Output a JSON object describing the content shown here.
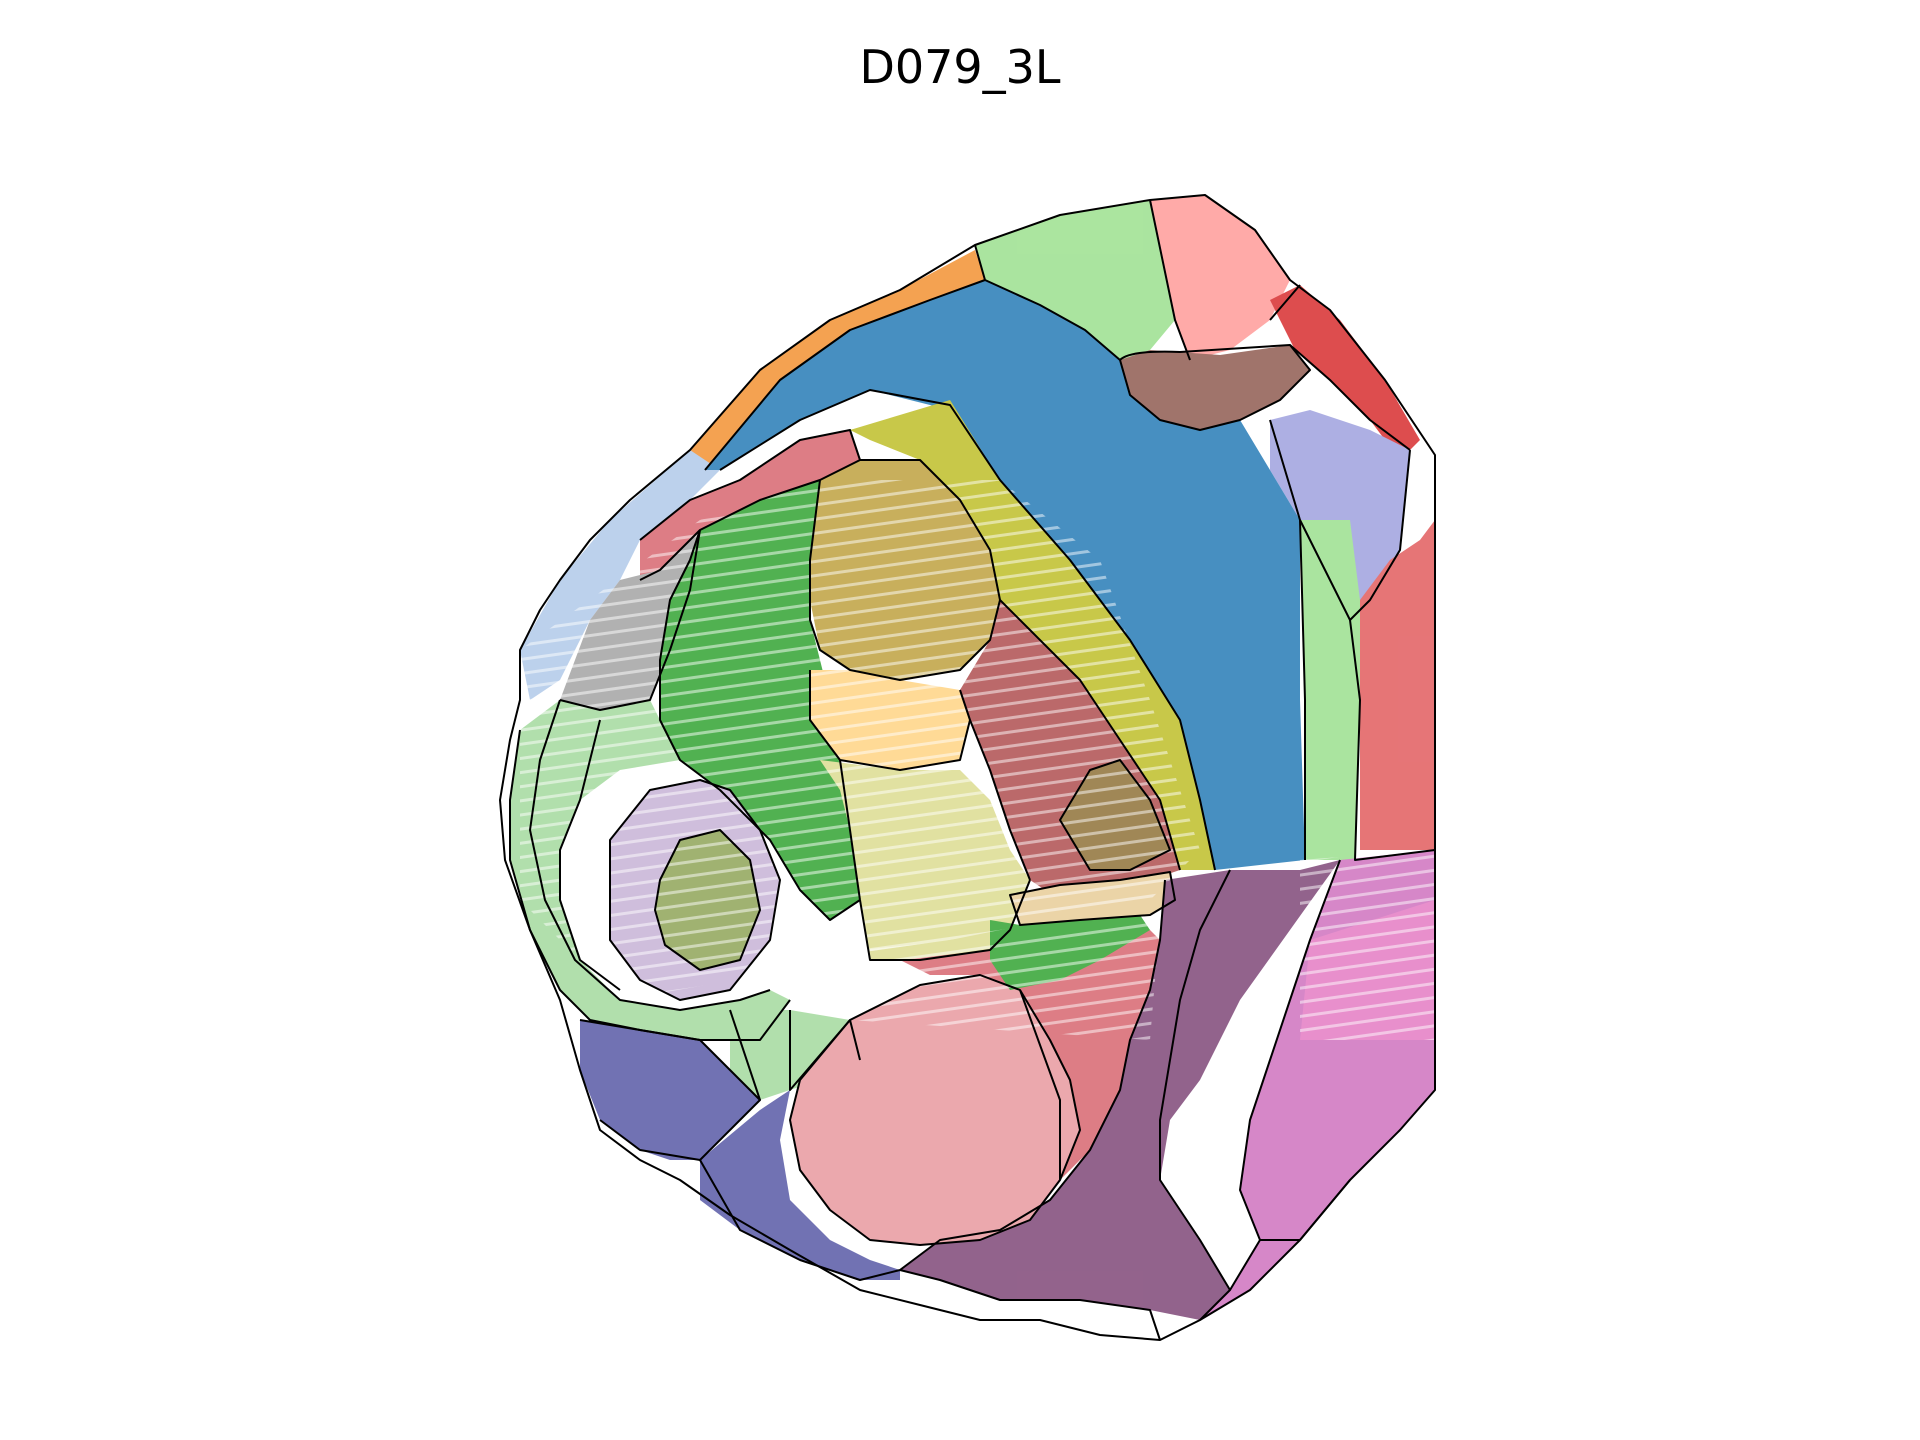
{
  "title": "D079_3L",
  "regions": [
    {
      "id": "orange-top",
      "color": "#f28e2b"
    },
    {
      "id": "light-green-top",
      "color": "#98df8a"
    },
    {
      "id": "salmon-top-right",
      "color": "#ff9896"
    },
    {
      "id": "red-top-right",
      "color": "#d62728"
    },
    {
      "id": "brown-dark",
      "color": "#8c564b"
    },
    {
      "id": "lavender-right",
      "color": "#9c9ede"
    },
    {
      "id": "light-blue-left",
      "color": "#aec7e8"
    },
    {
      "id": "blue-main",
      "color": "#1f77b4"
    },
    {
      "id": "pink-red-band",
      "color": "#e377c2"
    },
    {
      "id": "rose-band",
      "color": "#d6616b"
    },
    {
      "id": "yellow-green-band",
      "color": "#bcbd22"
    },
    {
      "id": "green-mid",
      "color": "#2ca02c"
    },
    {
      "id": "gold-brown",
      "color": "#bd9e39"
    },
    {
      "id": "gray-left",
      "color": "#a0a0a0"
    },
    {
      "id": "light-yellow",
      "color": "#ffd27f"
    },
    {
      "id": "dark-red-mid",
      "color": "#ad494a"
    },
    {
      "id": "khaki-brown",
      "color": "#8c6d31"
    },
    {
      "id": "pale-green-center",
      "color": "#dbdb8d"
    },
    {
      "id": "lavender-loop",
      "color": "#c5b0d5"
    },
    {
      "id": "olive-oval",
      "color": "#8ca252"
    },
    {
      "id": "light-green-rings",
      "color": "#a1d99b"
    },
    {
      "id": "purple-dark",
      "color": "#7b4173"
    },
    {
      "id": "magenta-right",
      "color": "#ce6dbd"
    },
    {
      "id": "indigo-bottom-left",
      "color": "#5254a3"
    },
    {
      "id": "red-bottom",
      "color": "#e7969c"
    },
    {
      "id": "wheat-strip",
      "color": "#e7cb94"
    },
    {
      "id": "red-stripes-right",
      "color": "#e15759"
    }
  ]
}
